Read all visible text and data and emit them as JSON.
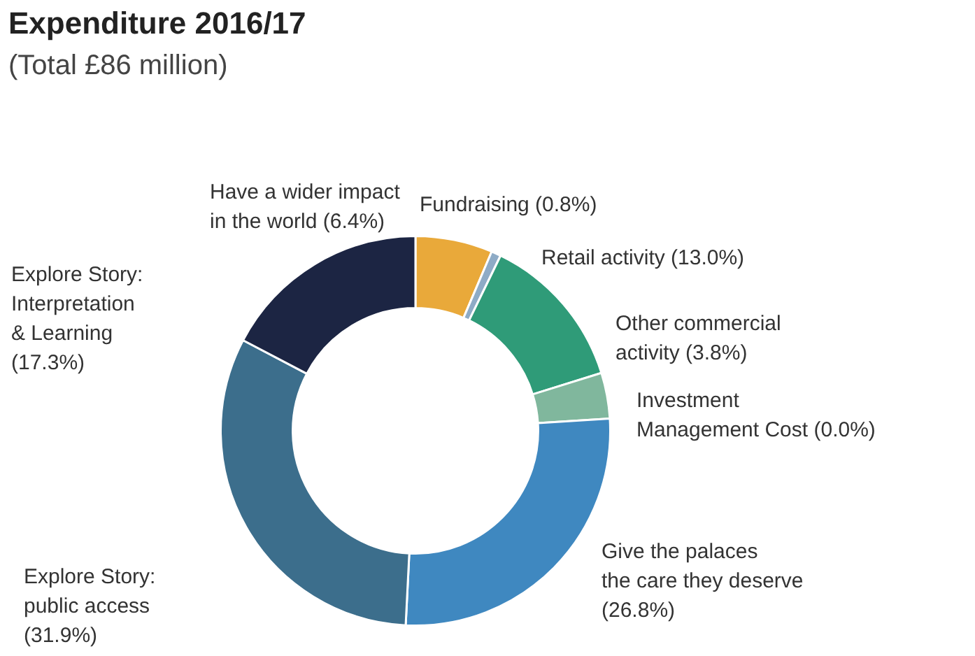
{
  "chart_data": {
    "type": "donut",
    "title": "Expenditure 2016/17",
    "subtitle": "(Total £86 million)",
    "categories": [
      "Have a wider impact in the world",
      "Fundraising",
      "Retail activity",
      "Other commercial activity",
      "Investment Management Cost",
      "Give the palaces the care they deserve",
      "Explore Story: public access",
      "Explore Story: Interpretation & Learning"
    ],
    "values": [
      6.4,
      0.8,
      13.0,
      3.8,
      0.0,
      26.8,
      31.9,
      17.3
    ],
    "value_labels": [
      "(6.4%)",
      "(0.8%)",
      "(13.0%)",
      "(3.8%)",
      "(0.0%)",
      "(26.8%)",
      "(31.9%)",
      "(17.3%)"
    ],
    "colors": [
      "#e9a93a",
      "#8eabc6",
      "#2f9b78",
      "#80b79d",
      "#5f9fcb",
      "#3f88c0",
      "#3c6e8c",
      "#1c2543"
    ],
    "legend": false
  }
}
